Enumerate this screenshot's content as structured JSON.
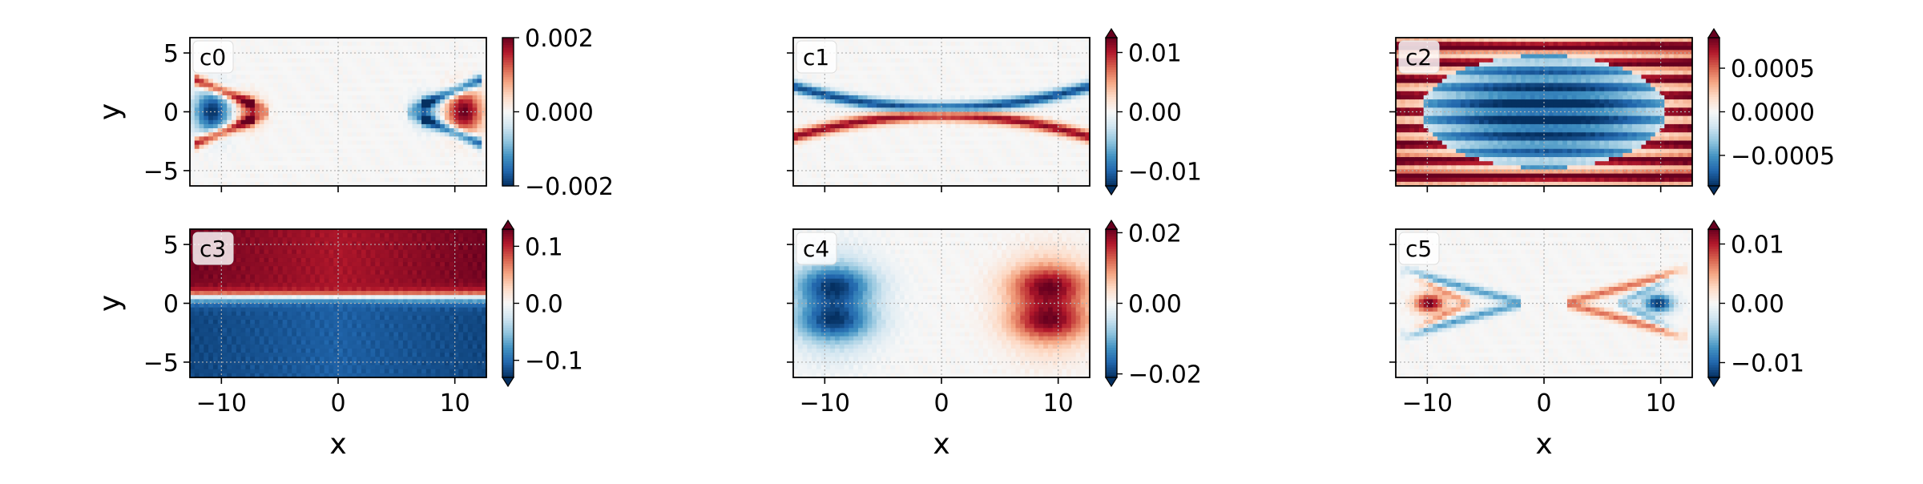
{
  "chart_data": [
    {
      "type": "heatmap",
      "panel_label": "c0",
      "xlabel": "",
      "ylabel": "y",
      "xlim": [
        -12.7,
        12.7
      ],
      "ylim": [
        -6.3,
        6.3
      ],
      "xticks": [],
      "yticks": [
        {
          "value": 5,
          "label": "5"
        },
        {
          "value": 0,
          "label": "0"
        },
        {
          "value": -5,
          "label": "−5"
        }
      ],
      "colorbar": {
        "range": [
          -0.002,
          0.002
        ],
        "extend": false,
        "ticks": [
          {
            "value": 0.002,
            "label": "0.002"
          },
          {
            "value": 0.0,
            "label": "0.000"
          },
          {
            "value": -0.002,
            "label": "−0.002"
          }
        ]
      },
      "pattern": "chevrons",
      "colormap": "RdBu_r",
      "grid": true
    },
    {
      "type": "heatmap",
      "panel_label": "c1",
      "xlabel": "",
      "ylabel": "",
      "xlim": [
        -12.7,
        12.7
      ],
      "ylim": [
        -6.3,
        6.3
      ],
      "xticks": [],
      "yticks": [],
      "colorbar": {
        "range": [
          -0.0125,
          0.0125
        ],
        "extend": true,
        "ticks": [
          {
            "value": 0.01,
            "label": "0.01"
          },
          {
            "value": 0.0,
            "label": "0.00"
          },
          {
            "value": -0.01,
            "label": "−0.01"
          }
        ]
      },
      "pattern": "crossing-lines",
      "colormap": "RdBu_r",
      "grid": true
    },
    {
      "type": "heatmap",
      "panel_label": "c2",
      "xlabel": "",
      "ylabel": "",
      "xlim": [
        -12.7,
        12.7
      ],
      "ylim": [
        -6.3,
        6.3
      ],
      "xticks": [],
      "yticks": [],
      "colorbar": {
        "range": [
          -0.00085,
          0.00085
        ],
        "extend": true,
        "ticks": [
          {
            "value": 0.0005,
            "label": "0.0005"
          },
          {
            "value": 0.0,
            "label": "0.0000"
          },
          {
            "value": -0.0005,
            "label": "−0.0005"
          }
        ]
      },
      "pattern": "striped-ellipse",
      "colormap": "RdBu_r",
      "grid": true
    },
    {
      "type": "heatmap",
      "panel_label": "c3",
      "xlabel": "x",
      "ylabel": "y",
      "xlim": [
        -12.7,
        12.7
      ],
      "ylim": [
        -6.3,
        6.3
      ],
      "xticks": [
        {
          "value": -10,
          "label": "−10"
        },
        {
          "value": 0,
          "label": "0"
        },
        {
          "value": 10,
          "label": "10"
        }
      ],
      "yticks": [
        {
          "value": 5,
          "label": "5"
        },
        {
          "value": 0,
          "label": "0"
        },
        {
          "value": -5,
          "label": "−5"
        }
      ],
      "colorbar": {
        "range": [
          -0.13,
          0.13
        ],
        "extend": true,
        "ticks": [
          {
            "value": 0.1,
            "label": "0.1"
          },
          {
            "value": 0.0,
            "label": "0.0"
          },
          {
            "value": -0.1,
            "label": "−0.1"
          }
        ]
      },
      "pattern": "step",
      "colormap": "RdBu_r",
      "grid": true
    },
    {
      "type": "heatmap",
      "panel_label": "c4",
      "xlabel": "x",
      "ylabel": "",
      "xlim": [
        -12.7,
        12.7
      ],
      "ylim": [
        -6.3,
        6.3
      ],
      "xticks": [
        {
          "value": -10,
          "label": "−10"
        },
        {
          "value": 0,
          "label": "0"
        },
        {
          "value": 10,
          "label": "10"
        }
      ],
      "yticks": [],
      "colorbar": {
        "range": [
          -0.021,
          0.021
        ],
        "extend": true,
        "ticks": [
          {
            "value": 0.02,
            "label": "0.02"
          },
          {
            "value": 0.0,
            "label": "0.00"
          },
          {
            "value": -0.02,
            "label": "−0.02"
          }
        ]
      },
      "pattern": "lobes",
      "colormap": "RdBu_r",
      "grid": true
    },
    {
      "type": "heatmap",
      "panel_label": "c5",
      "xlabel": "x",
      "ylabel": "",
      "xlim": [
        -12.7,
        12.7
      ],
      "ylim": [
        -6.3,
        6.3
      ],
      "xticks": [
        {
          "value": -10,
          "label": "−10"
        },
        {
          "value": 0,
          "label": "0"
        },
        {
          "value": 10,
          "label": "10"
        }
      ],
      "yticks": [],
      "colorbar": {
        "range": [
          -0.0125,
          0.0125
        ],
        "extend": true,
        "ticks": [
          {
            "value": 0.01,
            "label": "0.01"
          },
          {
            "value": 0.0,
            "label": "0.00"
          },
          {
            "value": -0.01,
            "label": "−0.01"
          }
        ]
      },
      "pattern": "thin-chevrons",
      "colormap": "RdBu_r",
      "grid": true
    }
  ]
}
